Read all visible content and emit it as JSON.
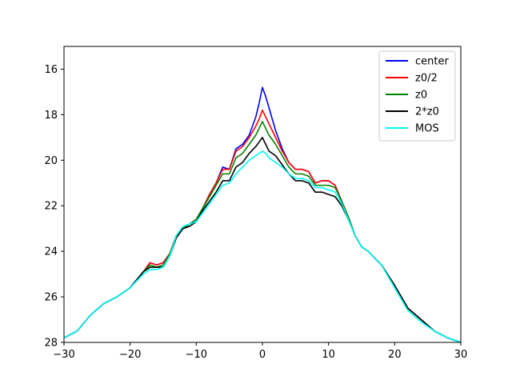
{
  "chart_data": {
    "type": "line",
    "title": "",
    "xlabel": "",
    "ylabel": "",
    "xlim": [
      -30,
      30
    ],
    "ylim": [
      28,
      15
    ],
    "y_inverted": true,
    "xticks": [
      -30,
      -20,
      -10,
      0,
      10,
      20,
      30
    ],
    "yticks": [
      16,
      18,
      20,
      22,
      24,
      26,
      28
    ],
    "xtick_labels": [
      "−30",
      "−20",
      "−10",
      "0",
      "10",
      "20",
      "30"
    ],
    "ytick_labels": [
      "16",
      "18",
      "20",
      "22",
      "24",
      "26",
      "28"
    ],
    "grid": false,
    "legend_position": "top-right",
    "x": [
      -30,
      -28,
      -26,
      -24,
      -22,
      -20,
      -18,
      -17,
      -16,
      -15,
      -14,
      -13,
      -12,
      -11,
      -10,
      -9,
      -8,
      -7,
      -6,
      -5,
      -4,
      -3,
      -2,
      -1,
      -0.5,
      0,
      0.5,
      1,
      2,
      3,
      4,
      5,
      6,
      7,
      8,
      9,
      10,
      11,
      12,
      13,
      14,
      15,
      16,
      17,
      18,
      20,
      22,
      24,
      26,
      28,
      30
    ],
    "series": [
      {
        "name": "center",
        "color": "#0000ff",
        "values": [
          27.8,
          27.5,
          26.8,
          26.3,
          26.0,
          25.6,
          24.9,
          24.5,
          24.6,
          24.5,
          24.1,
          23.3,
          23.0,
          22.8,
          22.6,
          22.1,
          21.5,
          21.0,
          20.3,
          20.4,
          19.5,
          19.3,
          18.9,
          18.1,
          17.5,
          16.8,
          17.2,
          17.7,
          18.7,
          19.5,
          20.1,
          20.4,
          20.4,
          20.5,
          21.0,
          20.9,
          20.9,
          21.1,
          21.8,
          22.5,
          23.3,
          23.8,
          24.0,
          24.3,
          24.6,
          25.5,
          26.5,
          27.0,
          27.5,
          27.8,
          28.0
        ]
      },
      {
        "name": "z0/2",
        "color": "#ff0000",
        "values": [
          27.8,
          27.5,
          26.8,
          26.3,
          26.0,
          25.6,
          24.9,
          24.5,
          24.6,
          24.5,
          24.1,
          23.3,
          23.0,
          22.8,
          22.6,
          22.1,
          21.5,
          21.0,
          20.4,
          20.4,
          19.6,
          19.4,
          19.0,
          18.5,
          18.2,
          17.8,
          18.1,
          18.4,
          19.0,
          19.6,
          20.1,
          20.4,
          20.4,
          20.5,
          21.0,
          20.9,
          20.9,
          21.1,
          21.8,
          22.5,
          23.3,
          23.8,
          24.0,
          24.3,
          24.6,
          25.5,
          26.5,
          27.0,
          27.5,
          27.8,
          28.0
        ]
      },
      {
        "name": "z0",
        "color": "#008000",
        "values": [
          27.8,
          27.5,
          26.8,
          26.3,
          26.0,
          25.6,
          24.9,
          24.6,
          24.7,
          24.6,
          24.1,
          23.3,
          23.0,
          22.8,
          22.6,
          22.1,
          21.6,
          21.1,
          20.6,
          20.6,
          19.9,
          19.7,
          19.3,
          18.9,
          18.6,
          18.3,
          18.6,
          18.9,
          19.3,
          19.8,
          20.3,
          20.6,
          20.6,
          20.7,
          21.1,
          21.1,
          21.1,
          21.2,
          21.8,
          22.5,
          23.3,
          23.8,
          24.0,
          24.3,
          24.6,
          25.5,
          26.5,
          27.0,
          27.5,
          27.8,
          28.0
        ]
      },
      {
        "name": "2*z0",
        "color": "#000000",
        "values": [
          27.8,
          27.5,
          26.8,
          26.3,
          26.0,
          25.6,
          24.9,
          24.7,
          24.7,
          24.7,
          24.2,
          23.4,
          23.0,
          22.9,
          22.7,
          22.2,
          21.8,
          21.4,
          20.9,
          20.9,
          20.3,
          20.1,
          19.7,
          19.4,
          19.2,
          19.0,
          19.3,
          19.6,
          19.8,
          20.2,
          20.6,
          20.9,
          20.9,
          21.0,
          21.4,
          21.4,
          21.5,
          21.6,
          22.0,
          22.6,
          23.3,
          23.8,
          24.0,
          24.3,
          24.6,
          25.5,
          26.5,
          27.0,
          27.5,
          27.8,
          28.0
        ]
      },
      {
        "name": "MOS",
        "color": "#00ffff",
        "values": [
          27.8,
          27.5,
          26.8,
          26.3,
          26.0,
          25.6,
          25.0,
          24.8,
          24.8,
          24.7,
          24.2,
          23.3,
          22.9,
          22.8,
          22.7,
          22.3,
          21.9,
          21.5,
          21.1,
          21.0,
          20.6,
          20.3,
          20.0,
          19.8,
          19.7,
          19.6,
          19.7,
          19.9,
          20.1,
          20.3,
          20.6,
          20.8,
          20.8,
          20.9,
          21.2,
          21.2,
          21.3,
          21.4,
          21.9,
          22.6,
          23.3,
          23.8,
          24.0,
          24.3,
          24.6,
          25.6,
          26.6,
          27.1,
          27.5,
          27.8,
          28.0
        ]
      }
    ]
  }
}
